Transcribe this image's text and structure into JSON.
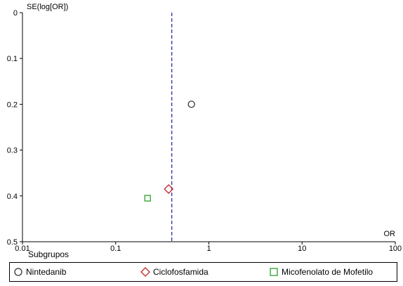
{
  "chart_data": {
    "type": "scatter",
    "title": "",
    "xlabel": "OR",
    "ylabel": "SE(log[OR])",
    "x_scale": "log",
    "xlim": [
      0.01,
      100
    ],
    "ylim": [
      0,
      0.5
    ],
    "y_inverted": true,
    "x_ticks": [
      "0.01",
      "0.1",
      "1",
      "10",
      "100"
    ],
    "y_ticks": [
      "0",
      "0.1",
      "0.2",
      "0.3",
      "0.4",
      "0.5"
    ],
    "reference_line": {
      "x": 0.4,
      "style": "dashed",
      "color": "#2b2f9e"
    },
    "series": [
      {
        "name": "Nintedanib",
        "marker": "circle",
        "color": "#333333",
        "points": [
          {
            "x": 0.65,
            "y": 0.2
          }
        ]
      },
      {
        "name": "Ciclofosfamida",
        "marker": "diamond",
        "color": "#c0282d",
        "points": [
          {
            "x": 0.37,
            "y": 0.385
          }
        ]
      },
      {
        "name": "Micofenolato de Mofetilo",
        "marker": "square",
        "color": "#2ca02c",
        "points": [
          {
            "x": 0.22,
            "y": 0.405
          }
        ]
      }
    ],
    "grid": false,
    "legend_position": "bottom",
    "legend_title": "Subgrupos"
  }
}
